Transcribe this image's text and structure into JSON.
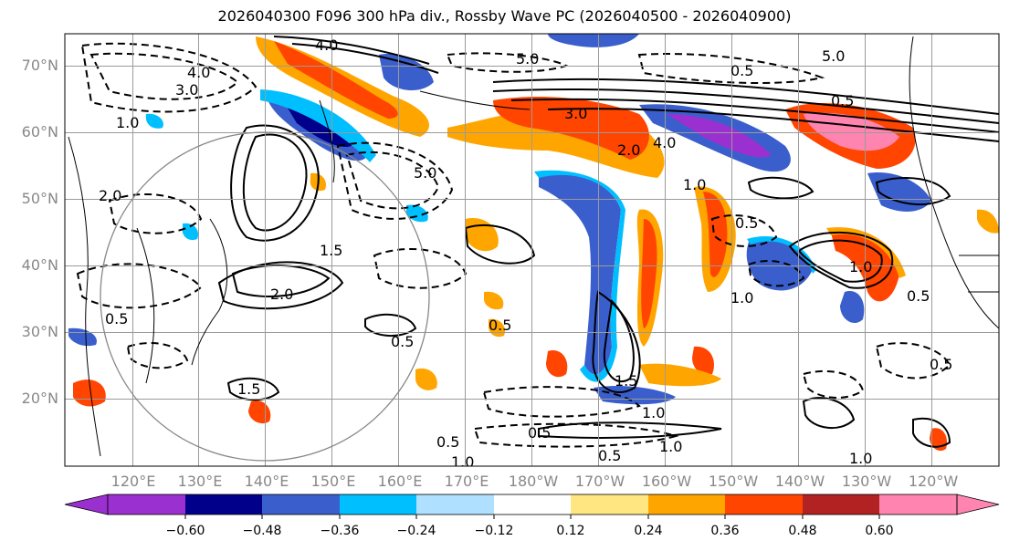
{
  "title": "2026040300 F096 300 hPa div., Rossby Wave PC (2026040500 - 2026040900)",
  "lat_labels": [
    "70°N",
    "60°N",
    "50°N",
    "40°N",
    "30°N",
    "20°N"
  ],
  "lon_labels": [
    "120°E",
    "130°E",
    "140°E",
    "150°E",
    "160°E",
    "170°E",
    "180°W",
    "170°W",
    "160°W",
    "150°W",
    "140°W",
    "130°W",
    "120°W"
  ],
  "colorbar": {
    "ticks": [
      "−0.60",
      "−0.48",
      "−0.36",
      "−0.24",
      "−0.12",
      "0.12",
      "0.24",
      "0.36",
      "0.48",
      "0.60"
    ],
    "colors": [
      "#9b30d0",
      "#00008b",
      "#3a5fcd",
      "#00bfff",
      "#b0e0ff",
      "#ffffff",
      "#ffe680",
      "#ffa500",
      "#ff4500",
      "#b22222",
      "#ff85b0"
    ]
  },
  "contour_labels": [
    {
      "text": "4.0"
    },
    {
      "text": "5.0"
    },
    {
      "text": "4.0"
    },
    {
      "text": "5.0"
    },
    {
      "text": "0.5"
    },
    {
      "text": "3.0"
    },
    {
      "text": "1.0"
    },
    {
      "text": "2.0"
    },
    {
      "text": "4.0"
    },
    {
      "text": "3.0"
    },
    {
      "text": "2.0"
    },
    {
      "text": "1.0"
    },
    {
      "text": "0.5"
    },
    {
      "text": "5.0"
    },
    {
      "text": "1.5"
    },
    {
      "text": "1.0"
    },
    {
      "text": "2.0"
    },
    {
      "text": "0.5"
    },
    {
      "text": "1.0"
    },
    {
      "text": "0.5"
    },
    {
      "text": "1.5"
    },
    {
      "text": "0.5"
    },
    {
      "text": "0.5"
    },
    {
      "text": "1.0"
    },
    {
      "text": "0.5"
    },
    {
      "text": "1.0"
    },
    {
      "text": "0.5"
    },
    {
      "text": "1.0"
    },
    {
      "text": "0.5"
    },
    {
      "text": "1.5"
    },
    {
      "text": "1.0"
    },
    {
      "text": "0.5"
    },
    {
      "text": "0.5"
    }
  ]
}
